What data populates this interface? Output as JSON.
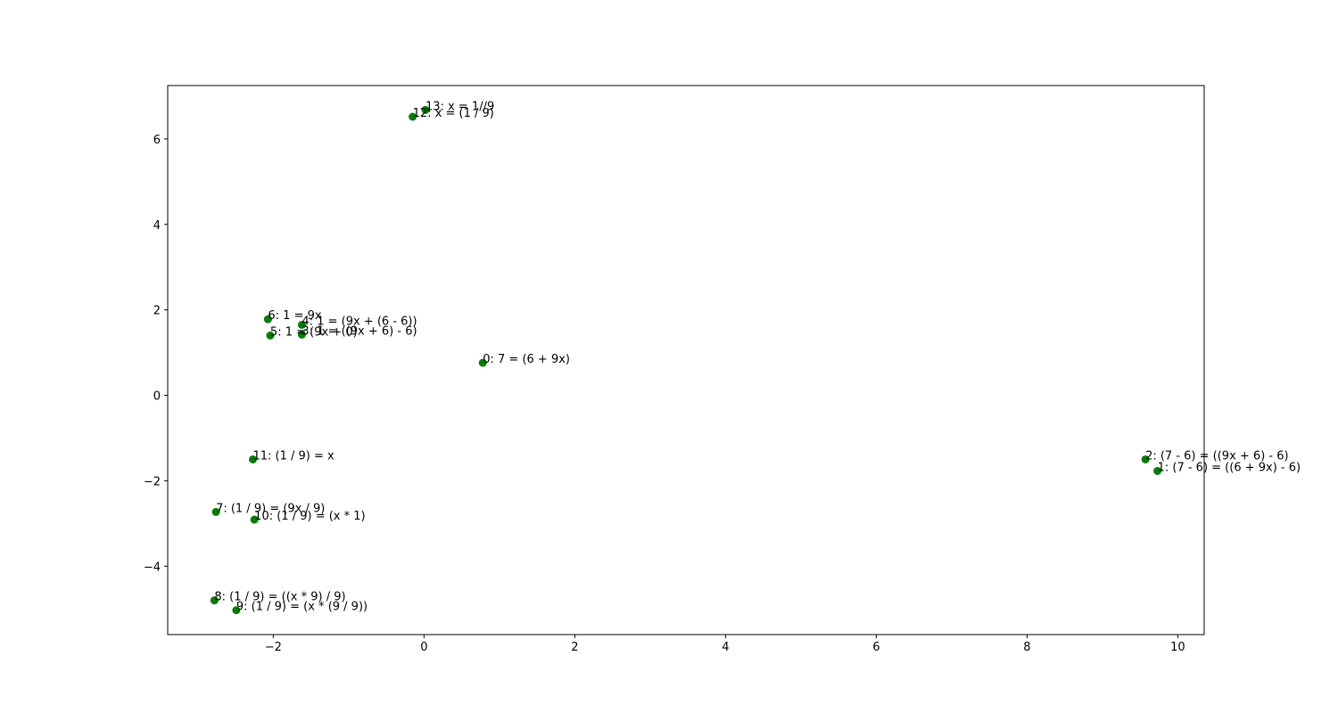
{
  "chart_data": {
    "type": "scatter",
    "title": "",
    "xlabel": "",
    "ylabel": "",
    "xlim": [
      -3.4,
      10.35
    ],
    "ylim": [
      -5.6,
      7.25
    ],
    "xticks": [
      -2,
      0,
      2,
      4,
      6,
      8,
      10
    ],
    "xtick_labels": [
      "−2",
      "0",
      "2",
      "4",
      "6",
      "8",
      "10"
    ],
    "yticks": [
      -4,
      -2,
      0,
      2,
      4,
      6
    ],
    "ytick_labels": [
      "−4",
      "−2",
      "0",
      "2",
      "4",
      "6"
    ],
    "grid": false,
    "marker_color": "#008000",
    "points": [
      {
        "label": "0: 7 = (6 + 9x)",
        "x": 0.78,
        "y": 0.76
      },
      {
        "label": "1: (7 - 6) = ((6 + 9x) - 6)",
        "x": 9.73,
        "y": -1.77
      },
      {
        "label": "2: (7 - 6) = ((9x + 6) - 6)",
        "x": 9.57,
        "y": -1.5
      },
      {
        "label": "3: 1 = ((9x + 6) - 6)",
        "x": -1.62,
        "y": 1.42
      },
      {
        "label": "4: 1 = (9x + (6 - 6))",
        "x": -1.62,
        "y": 1.65
      },
      {
        "label": "5: 1 = (9x + 0)",
        "x": -2.04,
        "y": 1.4
      },
      {
        "label": "6: 1 = 9x",
        "x": -2.07,
        "y": 1.78
      },
      {
        "label": "7: (1 / 9) = (9x / 9)",
        "x": -2.76,
        "y": -2.73
      },
      {
        "label": "8: (1 / 9) = ((x * 9) / 9)",
        "x": -2.78,
        "y": -4.8
      },
      {
        "label": "9: (1 / 9) = (x * (9 / 9))",
        "x": -2.49,
        "y": -5.03
      },
      {
        "label": "10: (1 / 9) = (x * 1)",
        "x": -2.25,
        "y": -2.91
      },
      {
        "label": "11: (1 / 9) = x",
        "x": -2.27,
        "y": -1.5
      },
      {
        "label": "12: x = (1 / 9)",
        "x": -0.15,
        "y": 6.52
      },
      {
        "label": "13: x = 1//9",
        "x": 0.02,
        "y": 6.68
      }
    ]
  }
}
